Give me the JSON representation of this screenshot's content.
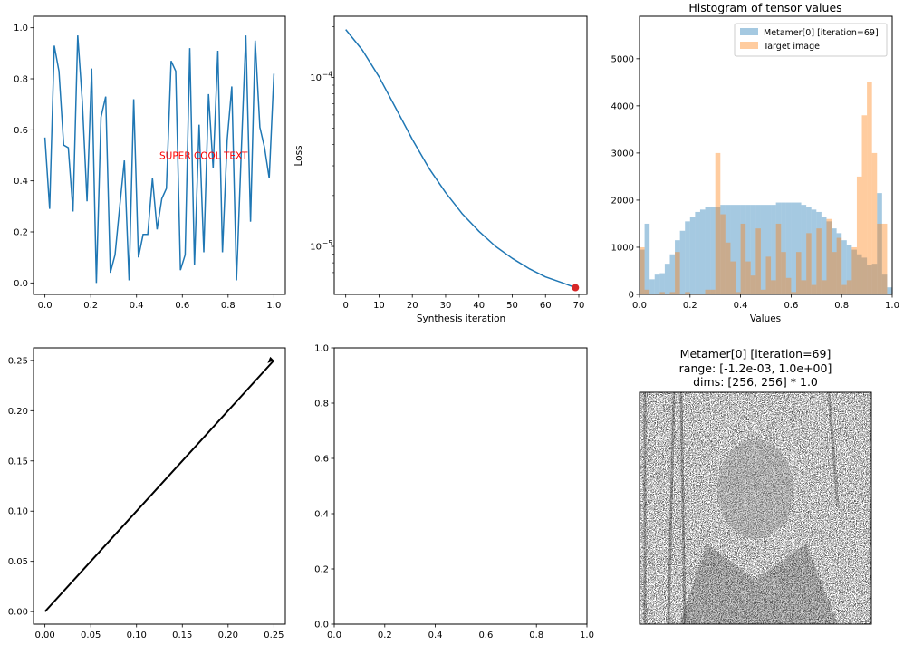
{
  "colors": {
    "blue": "#1f77b4",
    "orange": "#ff7f0e",
    "red": "#d62728",
    "text_red": "#ff0000",
    "black": "#000000"
  },
  "chart_data": [
    {
      "id": "p1",
      "type": "line",
      "xlim": [
        0.0,
        1.0
      ],
      "ylim": [
        0.0,
        1.0
      ],
      "xticks": [
        "0.0",
        "0.2",
        "0.4",
        "0.6",
        "0.8",
        "1.0"
      ],
      "yticks": [
        "0.0",
        "0.2",
        "0.4",
        "0.6",
        "0.8",
        "1.0"
      ],
      "annotation": {
        "text": "SUPER COOL TEXT",
        "x": 0.5,
        "y": 0.5
      },
      "series": [
        {
          "x": [
            0.0,
            0.0204,
            0.0408,
            0.0612,
            0.0816,
            0.102,
            0.1224,
            0.1429,
            0.1633,
            0.1837,
            0.2041,
            0.2245,
            0.2449,
            0.2653,
            0.2857,
            0.3061,
            0.3265,
            0.3469,
            0.3673,
            0.3878,
            0.4082,
            0.4286,
            0.449,
            0.4694,
            0.4898,
            0.5102,
            0.5306,
            0.551,
            0.5714,
            0.5918,
            0.6122,
            0.6327,
            0.6531,
            0.6735,
            0.6939,
            0.7143,
            0.7347,
            0.7551,
            0.7755,
            0.7959,
            0.8163,
            0.8367,
            0.8571,
            0.8776,
            0.898,
            0.9184,
            0.9388,
            0.9592,
            0.9796,
            1.0
          ],
          "y": [
            0.57,
            0.29,
            0.93,
            0.83,
            0.54,
            0.53,
            0.28,
            0.97,
            0.71,
            0.32,
            0.84,
            0.0,
            0.65,
            0.73,
            0.04,
            0.11,
            0.3,
            0.48,
            0.01,
            0.72,
            0.1,
            0.19,
            0.19,
            0.41,
            0.21,
            0.33,
            0.37,
            0.87,
            0.83,
            0.05,
            0.11,
            0.92,
            0.07,
            0.62,
            0.12,
            0.74,
            0.45,
            0.91,
            0.12,
            0.56,
            0.77,
            0.01,
            0.5,
            0.97,
            0.24,
            0.95,
            0.61,
            0.53,
            0.41,
            0.82
          ]
        }
      ]
    },
    {
      "id": "p2",
      "type": "line",
      "yscale": "log",
      "xlabel": "Synthesis iteration",
      "ylabel": "Loss",
      "xlim": [
        -3.45,
        72.45
      ],
      "ylim": [
        5.2e-06,
        0.00023
      ],
      "xticks": [
        "0",
        "10",
        "20",
        "30",
        "40",
        "50",
        "60",
        "70"
      ],
      "yticks": [
        "10",
        "10"
      ],
      "ytick_exponents": [
        "−4",
        "−5"
      ],
      "series": [
        {
          "x": [
            0,
            5,
            10,
            15,
            20,
            25,
            30,
            35,
            40,
            45,
            50,
            55,
            60,
            65,
            69
          ],
          "y": [
            0.000192,
            0.000145,
            0.000101,
            6.6e-05,
            4.3e-05,
            2.9e-05,
            2.08e-05,
            1.56e-05,
            1.23e-05,
            1e-05,
            8.5e-06,
            7.4e-06,
            6.6e-06,
            6.1e-06,
            5.7e-06
          ]
        }
      ],
      "marker": {
        "x": 69,
        "y": 5.7e-06
      }
    },
    {
      "id": "p3",
      "type": "bar",
      "title": "Histogram of tensor values",
      "xlabel": "Values",
      "xlim": [
        0.0,
        1.0
      ],
      "ylim": [
        0,
        5900
      ],
      "xticks": [
        "0.0",
        "0.2",
        "0.4",
        "0.6",
        "0.8",
        "1.0"
      ],
      "yticks": [
        "0",
        "1000",
        "2000",
        "3000",
        "4000",
        "5000"
      ],
      "bin_width": 0.02,
      "series": [
        {
          "name": "Metamer[0] [iteration=69]",
          "values": [
            950,
            1500,
            320,
            420,
            450,
            650,
            850,
            1150,
            1350,
            1550,
            1650,
            1750,
            1800,
            1850,
            1850,
            1850,
            1900,
            1900,
            1900,
            1900,
            1900,
            1900,
            1900,
            1900,
            1900,
            1900,
            1900,
            1950,
            1950,
            1950,
            1950,
            1950,
            1900,
            1850,
            1800,
            1750,
            1650,
            1550,
            1400,
            1300,
            1150,
            1050,
            950,
            850,
            780,
            620,
            650,
            2150,
            420,
            150
          ]
        },
        {
          "name": "Target image",
          "values": [
            1000,
            100,
            0,
            0,
            50,
            0,
            50,
            900,
            0,
            50,
            0,
            0,
            0,
            100,
            100,
            3000,
            1700,
            1100,
            700,
            50,
            1500,
            700,
            400,
            1400,
            100,
            800,
            300,
            1500,
            900,
            350,
            50,
            900,
            300,
            1300,
            200,
            1400,
            300,
            1600,
            900,
            1200,
            200,
            300,
            1000,
            2500,
            3800,
            4500,
            3000,
            1500,
            1500,
            0
          ]
        }
      ]
    },
    {
      "id": "p4",
      "type": "line",
      "xlim": [
        -0.0125,
        0.2625
      ],
      "ylim": [
        -0.0125,
        0.2625
      ],
      "xticks": [
        "0.00",
        "0.05",
        "0.10",
        "0.15",
        "0.20",
        "0.25"
      ],
      "yticks": [
        "0.00",
        "0.05",
        "0.10",
        "0.15",
        "0.20",
        "0.25"
      ],
      "series": [
        {
          "x": [
            0.0,
            0.25
          ],
          "y": [
            0.0,
            0.25
          ]
        }
      ]
    },
    {
      "id": "p5",
      "type": "line",
      "xlim": [
        0.0,
        1.0
      ],
      "ylim": [
        0.0,
        1.0
      ],
      "xticks": [
        "0.0",
        "0.2",
        "0.4",
        "0.6",
        "0.8",
        "1.0"
      ],
      "yticks": [
        "0.0",
        "0.2",
        "0.4",
        "0.6",
        "0.8",
        "1.0"
      ],
      "series": []
    }
  ],
  "image_panel": {
    "title_lines": [
      "Metamer[0] [iteration=69]",
      "range: [-1.2e-03, 1.0e+00]",
      "dims: [256, 256] * 1.0"
    ]
  }
}
